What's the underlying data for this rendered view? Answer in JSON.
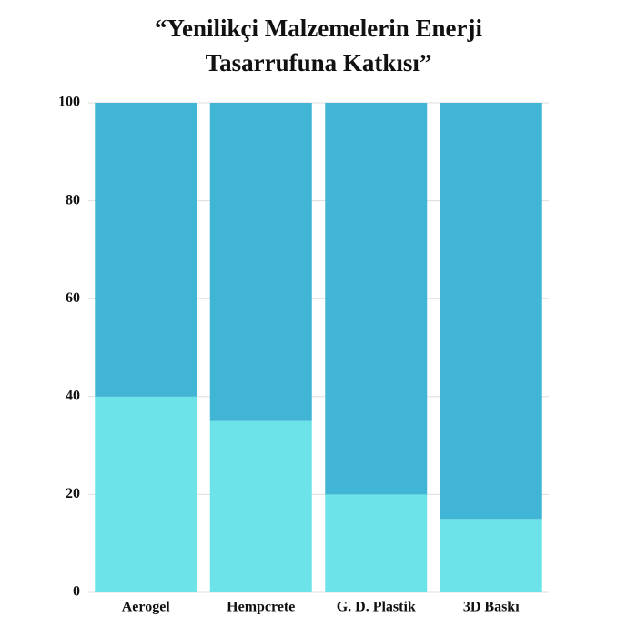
{
  "chart_data": {
    "type": "stacked_bar",
    "title": "“Yenilikçi Malzemelerin Enerji Tasarrufuna Katkısı”",
    "categories": [
      "Aerogel",
      "Hempcrete",
      "G. D. Plastik",
      "3D Baskı"
    ],
    "series": [
      {
        "color": "#6ce3e8",
        "values": [
          40,
          35,
          20,
          15
        ]
      },
      {
        "color": "#40b5d5",
        "values": [
          60,
          65,
          80,
          85
        ]
      }
    ],
    "ylim": [
      0,
      100
    ],
    "yticks": [
      0,
      20,
      40,
      60,
      80,
      100
    ],
    "grid": true
  }
}
